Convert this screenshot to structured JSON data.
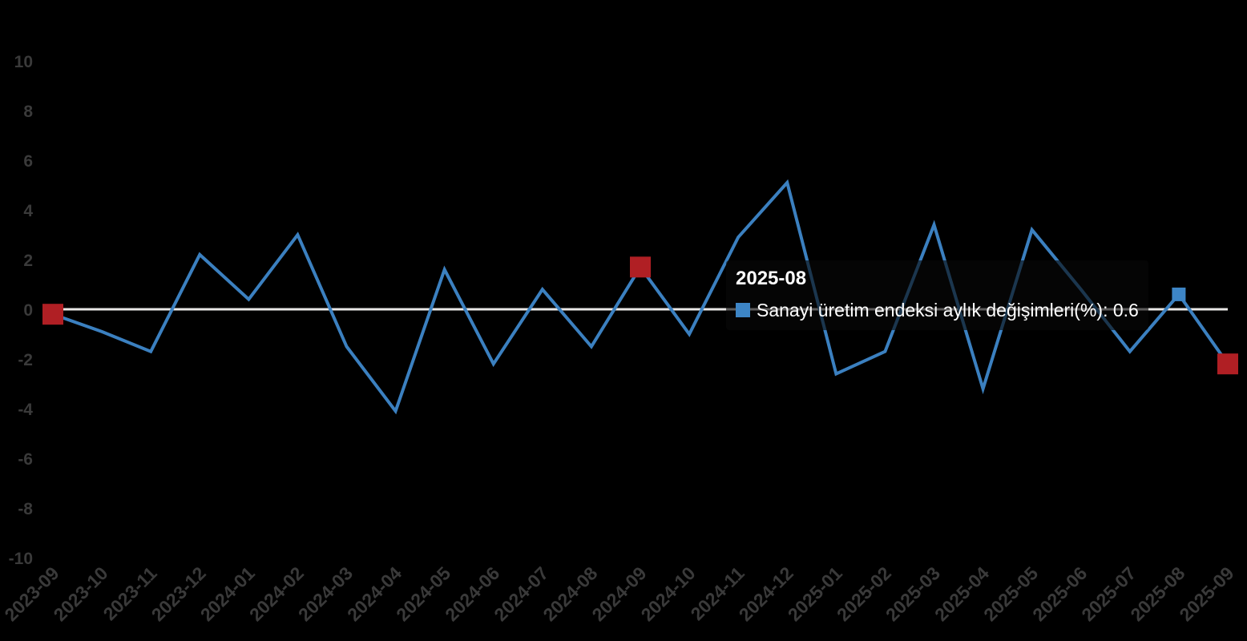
{
  "chart_data": {
    "type": "line",
    "title": "",
    "categories": [
      "2023-09",
      "2023-10",
      "2023-11",
      "2023-12",
      "2024-01",
      "2024-02",
      "2024-03",
      "2024-04",
      "2024-05",
      "2024-06",
      "2024-07",
      "2024-08",
      "2024-09",
      "2024-10",
      "2024-11",
      "2024-12",
      "2025-01",
      "2025-02",
      "2025-03",
      "2025-04",
      "2025-05",
      "2025-06",
      "2025-07",
      "2025-08",
      "2025-09"
    ],
    "series": [
      {
        "name": "Sanayi üretim endeksi aylık değişimleri(%)",
        "values": [
          -0.2,
          -0.9,
          -1.7,
          2.2,
          0.4,
          3.0,
          -1.5,
          -4.1,
          1.6,
          -2.2,
          0.8,
          -1.5,
          1.7,
          -1.0,
          2.9,
          5.1,
          -2.6,
          -1.7,
          3.4,
          -3.2,
          3.2,
          0.8,
          -1.7,
          0.6,
          -2.2
        ]
      }
    ],
    "xlabel": "",
    "ylabel": "",
    "ylim": [
      -10,
      10
    ],
    "y_ticks": [
      10,
      8,
      6,
      4,
      2,
      0,
      -2,
      -4,
      -6,
      -8,
      -10
    ],
    "grid": "off",
    "zero_line": true,
    "legend_position": "none",
    "highlighted_categories": [
      "2023-09",
      "2024-09",
      "2025-09"
    ],
    "hovered_category": "2025-08",
    "hovered_value": 0.6
  },
  "tooltip": {
    "title": "2025-08",
    "series_label": "Sanayi üretim endeksi aylık değişimleri(%)",
    "separator": ": ",
    "value": "0.6"
  },
  "colors": {
    "background": "#000000",
    "line": "#3b80c0",
    "marker_red": "#b01f24",
    "hover_marker": "#3d85c6",
    "zero_line": "#e9e7e6",
    "axis_label": "#3a3a3a",
    "tooltip_bg": "rgba(8,8,8,0.62)",
    "tooltip_text": "#ffffff"
  }
}
